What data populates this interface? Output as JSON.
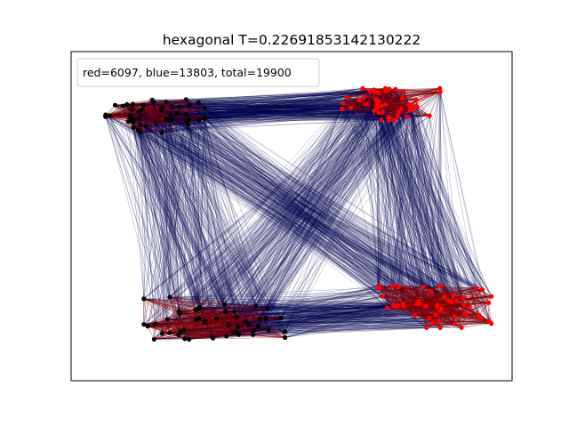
{
  "chart_data": {
    "type": "network-graph",
    "title": "hexagonal T=0.22691853142130222",
    "legend": {
      "text": "red=6097, blue=13803, total=19900",
      "placement": "top-left"
    },
    "xlabel": "",
    "ylabel": "",
    "axis_ticks": false,
    "grid": false,
    "colors": {
      "node_red": "#ff0000",
      "node_black": "#000000",
      "edge_blue": "#00004d",
      "edge_red": "#8b0000"
    },
    "clusters": [
      {
        "name": "",
        "node_color": "node_black",
        "center": [
          -0.62,
          0.62
        ],
        "spread": [
          0.14,
          0.07
        ],
        "count": 50
      },
      {
        "name": "",
        "node_color": "node_red",
        "center": [
          0.45,
          0.68
        ],
        "spread": [
          0.14,
          0.06
        ],
        "count": 50
      },
      {
        "name": "",
        "node_color": "node_black",
        "center": [
          -0.35,
          -0.62
        ],
        "spread": [
          0.2,
          0.08
        ],
        "count": 50
      },
      {
        "name": "",
        "node_color": "node_red",
        "center": [
          0.65,
          -0.55
        ],
        "spread": [
          0.16,
          0.08
        ],
        "count": 50
      }
    ],
    "xlim": [
      -1,
      1
    ],
    "ylim": [
      -1,
      1
    ]
  }
}
